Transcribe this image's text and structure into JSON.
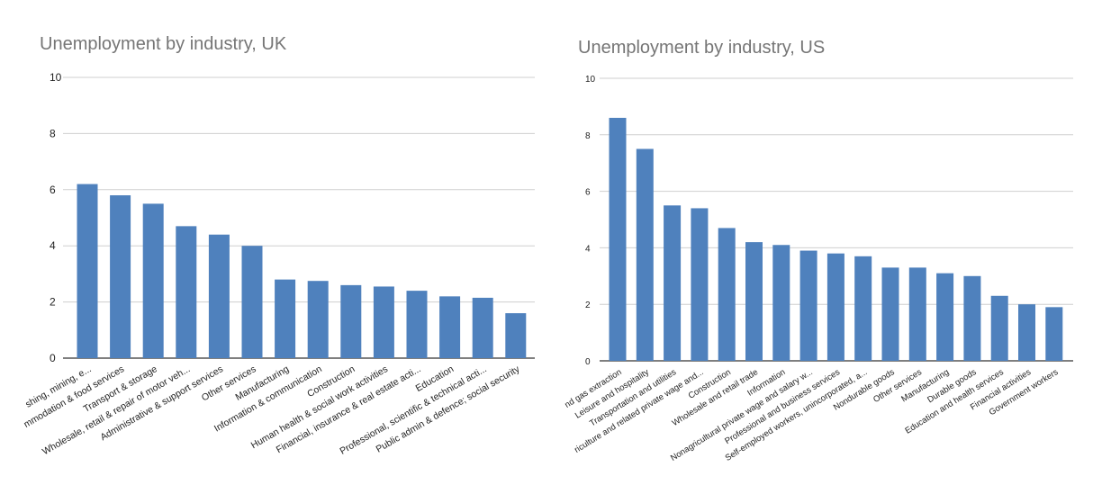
{
  "colors": {
    "bar": "#4f81bd",
    "grid": "#cfcfcf",
    "axis": "#333333",
    "title": "#757575"
  },
  "chart_data": [
    {
      "type": "bar",
      "title": "Unemployment by industry, UK",
      "xlabel": "",
      "ylabel": "",
      "ylim": [
        0,
        10
      ],
      "yticks": [
        "0",
        "2",
        "4",
        "6",
        "8",
        "10"
      ],
      "grid": true,
      "categories": [
        "shing, mining, e...",
        "mmodation & food services",
        "Transport & storage",
        "Wholesale, retail & repair of motor veh...",
        "Administrative & support services",
        "Other services",
        "Manufacturing",
        "Information & communication",
        "Construction",
        "Human health & social work activities",
        "Financial, insurance & real estate acti...",
        "Education",
        "Professional, scientific & technical acti...",
        "Public admin & defence; social security"
      ],
      "values": [
        6.2,
        5.8,
        5.5,
        4.7,
        4.4,
        4.0,
        2.8,
        2.75,
        2.6,
        2.55,
        2.4,
        2.2,
        2.15,
        1.6
      ]
    },
    {
      "type": "bar",
      "title": "Unemployment by industry, US",
      "xlabel": "",
      "ylabel": "",
      "ylim": [
        0,
        10
      ],
      "yticks": [
        "0",
        "2",
        "4",
        "6",
        "8",
        "10"
      ],
      "grid": true,
      "categories": [
        "nd gas extraction",
        "Leisure and hospitality",
        "Transportation and utilities",
        "riculture and related private wage and...",
        "Construction",
        "Wholesale and retail trade",
        "Information",
        "Nonagricultural private wage and salary w...",
        "Professional and business services",
        "Self-employed workers, unincorporated, a...",
        "Nondurable goods",
        "Other services",
        "Manufacturing",
        "Durable goods",
        "Education and health services",
        "Financial activities",
        "Government workers"
      ],
      "values": [
        8.6,
        7.5,
        5.5,
        5.4,
        4.7,
        4.2,
        4.1,
        3.9,
        3.8,
        3.7,
        3.3,
        3.3,
        3.1,
        3.0,
        2.3,
        2.0,
        1.9
      ]
    }
  ]
}
